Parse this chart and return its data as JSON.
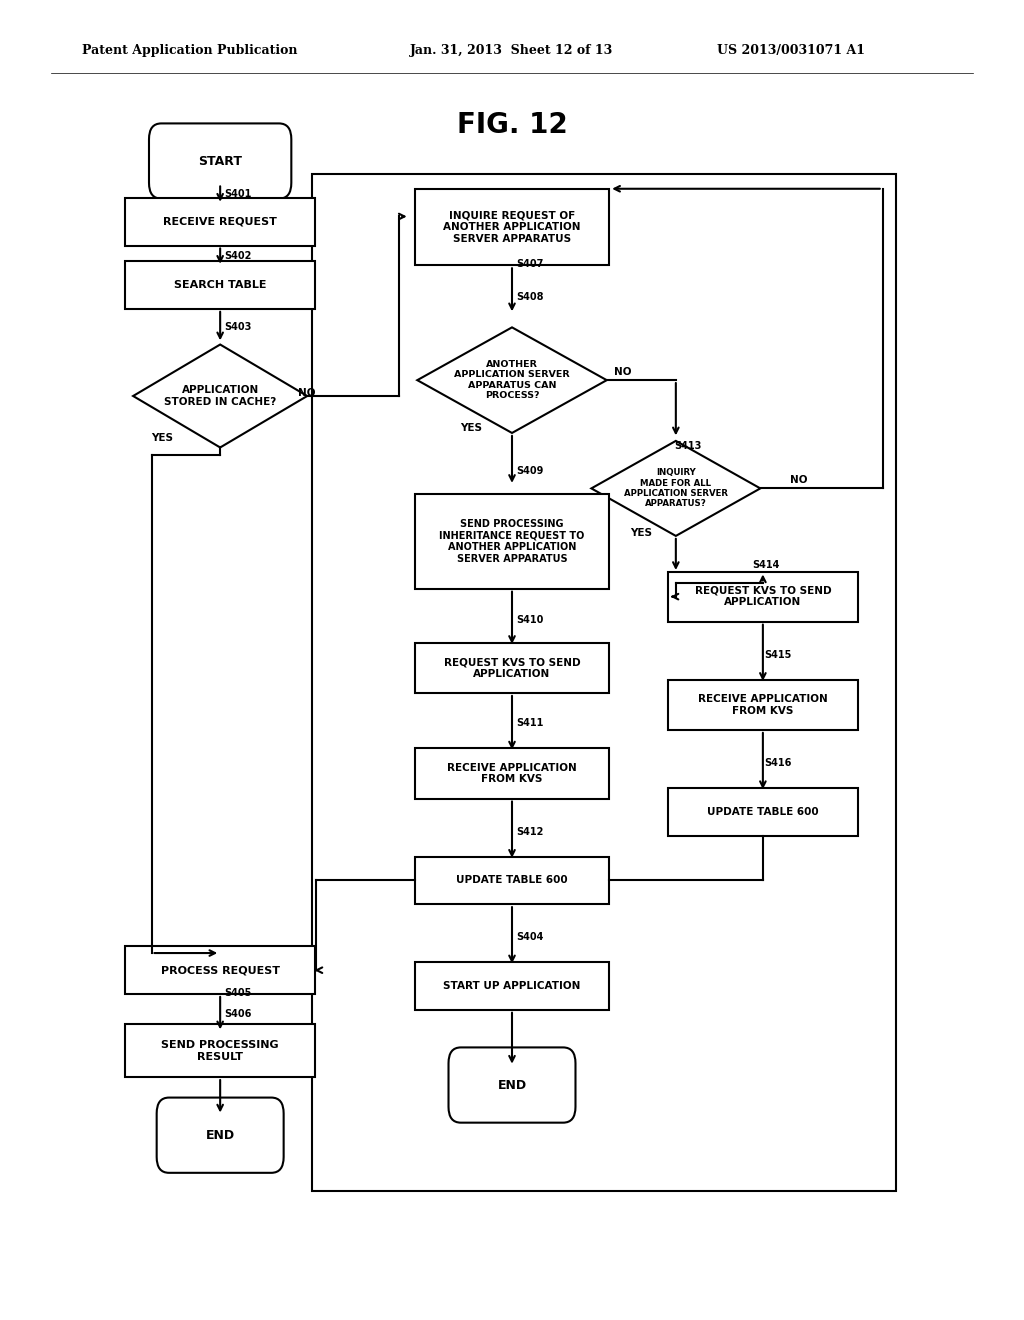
{
  "title": "FIG. 12",
  "header_left": "Patent Application Publication",
  "header_mid": "Jan. 31, 2013  Sheet 12 of 13",
  "header_right": "US 2013/0031071 A1",
  "bg_color": "#ffffff"
}
